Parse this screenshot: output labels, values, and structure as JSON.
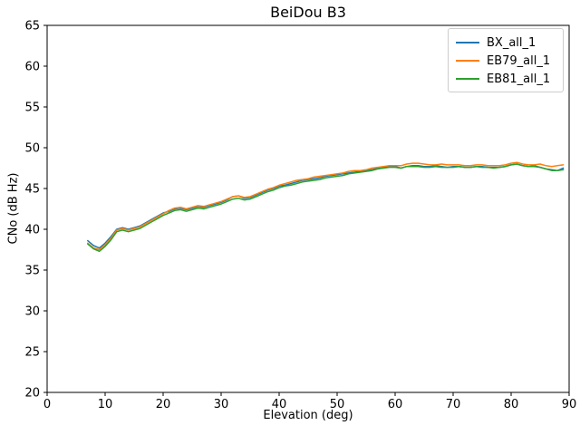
{
  "chart_data": {
    "type": "line",
    "title": "BeiDou B3",
    "xlabel": "Elevation (deg)",
    "ylabel": "CNo (dB Hz)",
    "xlim": [
      0,
      90
    ],
    "ylim": [
      20,
      65
    ],
    "xticks": [
      0,
      10,
      20,
      30,
      40,
      50,
      60,
      70,
      80,
      90
    ],
    "yticks": [
      20,
      25,
      30,
      35,
      40,
      45,
      50,
      55,
      60,
      65
    ],
    "grid": false,
    "legend_position": "upper right",
    "x": [
      7,
      8,
      9,
      10,
      11,
      12,
      13,
      14,
      15,
      16,
      17,
      18,
      19,
      20,
      21,
      22,
      23,
      24,
      25,
      26,
      27,
      28,
      29,
      30,
      31,
      32,
      33,
      34,
      35,
      36,
      37,
      38,
      39,
      40,
      41,
      42,
      43,
      44,
      45,
      46,
      47,
      48,
      49,
      50,
      51,
      52,
      53,
      54,
      55,
      56,
      57,
      58,
      59,
      60,
      61,
      62,
      63,
      64,
      65,
      66,
      67,
      68,
      69,
      70,
      71,
      72,
      73,
      74,
      75,
      76,
      77,
      78,
      79,
      80,
      81,
      82,
      83,
      84,
      85,
      86,
      87,
      88,
      89
    ],
    "series": [
      {
        "name": "BX_all_1",
        "color": "#1f77b4",
        "values": [
          38.6,
          38.0,
          37.7,
          38.3,
          39.1,
          40.0,
          40.2,
          40.0,
          40.2,
          40.4,
          40.8,
          41.2,
          41.6,
          42.0,
          42.2,
          42.5,
          42.6,
          42.4,
          42.6,
          42.8,
          42.7,
          42.9,
          43.1,
          43.3,
          43.6,
          44.0,
          44.1,
          43.8,
          43.9,
          44.2,
          44.5,
          44.8,
          45.0,
          45.3,
          45.4,
          45.6,
          45.8,
          46.0,
          46.1,
          46.2,
          46.3,
          46.5,
          46.6,
          46.7,
          46.8,
          46.9,
          47.0,
          47.1,
          47.2,
          47.3,
          47.5,
          47.6,
          47.7,
          47.7,
          47.5,
          47.7,
          47.8,
          47.8,
          47.7,
          47.7,
          47.8,
          47.7,
          47.6,
          47.7,
          47.7,
          47.6,
          47.6,
          47.7,
          47.7,
          47.6,
          47.6,
          47.6,
          47.7,
          47.9,
          48.0,
          47.8,
          47.7,
          47.8,
          47.6,
          47.4,
          47.3,
          47.2,
          47.5
        ]
      },
      {
        "name": "EB79_all_1",
        "color": "#ff7f0e",
        "values": [
          38.3,
          37.7,
          37.5,
          38.1,
          38.9,
          39.9,
          40.1,
          39.9,
          40.1,
          40.3,
          40.7,
          41.1,
          41.5,
          41.9,
          42.3,
          42.6,
          42.7,
          42.5,
          42.7,
          42.9,
          42.8,
          43.0,
          43.2,
          43.4,
          43.7,
          44.0,
          44.1,
          43.9,
          44.0,
          44.3,
          44.6,
          44.9,
          45.1,
          45.4,
          45.6,
          45.8,
          46.0,
          46.1,
          46.2,
          46.4,
          46.5,
          46.6,
          46.7,
          46.8,
          46.9,
          47.1,
          47.2,
          47.2,
          47.3,
          47.5,
          47.6,
          47.7,
          47.8,
          47.8,
          47.8,
          48.0,
          48.1,
          48.1,
          48.0,
          47.9,
          47.9,
          48.0,
          47.9,
          47.9,
          47.9,
          47.8,
          47.8,
          47.9,
          47.9,
          47.8,
          47.8,
          47.8,
          47.9,
          48.1,
          48.2,
          48.0,
          47.9,
          47.9,
          48.0,
          47.8,
          47.7,
          47.8,
          47.9
        ]
      },
      {
        "name": "EB81_all_1",
        "color": "#2ca02c",
        "values": [
          38.2,
          37.6,
          37.3,
          37.9,
          38.7,
          39.7,
          39.9,
          39.7,
          39.9,
          40.1,
          40.5,
          40.9,
          41.3,
          41.7,
          42.0,
          42.3,
          42.4,
          42.2,
          42.4,
          42.6,
          42.5,
          42.7,
          42.9,
          43.1,
          43.4,
          43.7,
          43.8,
          43.6,
          43.7,
          44.0,
          44.3,
          44.6,
          44.8,
          45.1,
          45.3,
          45.4,
          45.6,
          45.8,
          45.9,
          46.0,
          46.1,
          46.3,
          46.4,
          46.5,
          46.6,
          46.8,
          46.9,
          47.0,
          47.1,
          47.2,
          47.4,
          47.5,
          47.6,
          47.6,
          47.5,
          47.7,
          47.7,
          47.7,
          47.6,
          47.6,
          47.7,
          47.6,
          47.6,
          47.6,
          47.7,
          47.6,
          47.6,
          47.7,
          47.6,
          47.6,
          47.5,
          47.6,
          47.7,
          47.9,
          48.0,
          47.8,
          47.7,
          47.7,
          47.6,
          47.4,
          47.2,
          47.2,
          47.3
        ]
      }
    ],
    "line_width": 1.5,
    "spine_color": "#000000",
    "background_color": "#ffffff"
  }
}
